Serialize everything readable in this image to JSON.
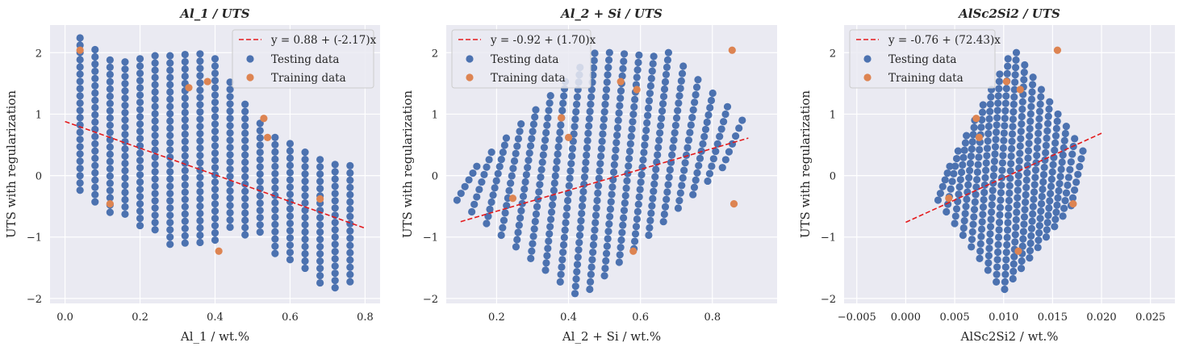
{
  "colors": {
    "background": "#eaeaf2",
    "grid": "#ffffff",
    "testing": "#4c72b0",
    "training": "#dd8452",
    "fit": "#e41a1c"
  },
  "chart_data": [
    {
      "type": "scatter",
      "title": "Al_1 / UTS",
      "xlabel": "Al_1 / wt.%",
      "ylabel": "UTS with regularization",
      "xlim": [
        -0.04,
        0.84
      ],
      "ylim": [
        -2.08,
        2.45
      ],
      "xticks": [
        0.0,
        0.2,
        0.4,
        0.6,
        0.8
      ],
      "xtick_labels": [
        "0.0",
        "0.2",
        "0.4",
        "0.6",
        "0.8"
      ],
      "yticks": [
        -2,
        -1,
        0,
        1,
        2
      ],
      "ytick_labels": [
        "−2",
        "−1",
        "0",
        "1",
        "2"
      ],
      "grid": true,
      "legend": {
        "position": "upper right",
        "entries": [
          "y = 0.88 + (-2.17)x",
          "Testing data",
          "Training data"
        ]
      },
      "fit_line": {
        "label": "y = 0.88 + (-2.17)x",
        "intercept": 0.88,
        "slope": -2.17,
        "x_range": [
          0.0,
          0.8
        ]
      },
      "testing_data": {
        "description": "Columns of testing points spaced 0.04 apart along x",
        "columns": [
          {
            "x": 0.04,
            "y_top": 2.24,
            "y_bottom": -0.31
          },
          {
            "x": 0.08,
            "y_top": 2.05,
            "y_bottom": -0.46
          },
          {
            "x": 0.12,
            "y_top": 1.88,
            "y_bottom": -0.62
          },
          {
            "x": 0.16,
            "y_top": 1.85,
            "y_bottom": -0.72
          },
          {
            "x": 0.2,
            "y_top": 1.9,
            "y_bottom": -0.86
          },
          {
            "x": 0.24,
            "y_top": 1.95,
            "y_bottom": -0.95
          },
          {
            "x": 0.28,
            "y_top": 1.95,
            "y_bottom": -1.13
          },
          {
            "x": 0.32,
            "y_top": 1.97,
            "y_bottom": -1.16
          },
          {
            "x": 0.36,
            "y_top": 1.98,
            "y_bottom": -1.13
          },
          {
            "x": 0.4,
            "y_top": 1.9,
            "y_bottom": -1.11
          },
          {
            "x": 0.44,
            "y_top": 1.52,
            "y_bottom": -0.92
          },
          {
            "x": 0.48,
            "y_top": 1.16,
            "y_bottom": -1.0
          },
          {
            "x": 0.52,
            "y_top": 0.85,
            "y_bottom": -1.03
          },
          {
            "x": 0.56,
            "y_top": 0.62,
            "y_bottom": -1.28
          },
          {
            "x": 0.6,
            "y_top": 0.52,
            "y_bottom": -1.47
          },
          {
            "x": 0.64,
            "y_top": 0.38,
            "y_bottom": -1.58
          },
          {
            "x": 0.68,
            "y_top": 0.26,
            "y_bottom": -1.76
          },
          {
            "x": 0.72,
            "y_top": 0.18,
            "y_bottom": -1.85
          },
          {
            "x": 0.76,
            "y_top": 0.16,
            "y_bottom": -1.78
          }
        ]
      },
      "training_data": [
        {
          "x": 0.04,
          "y": 2.04
        },
        {
          "x": 0.12,
          "y": -0.46
        },
        {
          "x": 0.33,
          "y": 1.43
        },
        {
          "x": 0.38,
          "y": 1.53
        },
        {
          "x": 0.41,
          "y": -1.23
        },
        {
          "x": 0.53,
          "y": 0.93
        },
        {
          "x": 0.54,
          "y": 0.62
        },
        {
          "x": 0.68,
          "y": -0.38
        }
      ]
    },
    {
      "type": "scatter",
      "title": "Al_2 + Si / UTS",
      "xlabel": "Al_2 + Si / wt.%",
      "ylabel": "UTS with regularization",
      "xlim": [
        0.06,
        0.98
      ],
      "ylim": [
        -2.08,
        2.45
      ],
      "xticks": [
        0.2,
        0.4,
        0.6,
        0.8
      ],
      "xtick_labels": [
        "0.2",
        "0.4",
        "0.6",
        "0.8"
      ],
      "yticks": [
        -2,
        -1,
        0,
        1,
        2
      ],
      "ytick_labels": [
        "−2",
        "−1",
        "0",
        "1",
        "2"
      ],
      "grid": true,
      "legend": {
        "position": "upper left",
        "entries": [
          "y = -0.92 + (1.70)x",
          "Testing data",
          "Training data"
        ]
      },
      "fit_line": {
        "label": "y = -0.92 + (1.70)x",
        "intercept": -0.92,
        "slope": 1.7,
        "x_range": [
          0.1,
          0.9
        ]
      },
      "training_data": [
        {
          "x": 0.245,
          "y": -0.37
        },
        {
          "x": 0.38,
          "y": 0.94
        },
        {
          "x": 0.4,
          "y": 0.62
        },
        {
          "x": 0.545,
          "y": 1.53
        },
        {
          "x": 0.58,
          "y": -1.23
        },
        {
          "x": 0.59,
          "y": 1.4
        },
        {
          "x": 0.855,
          "y": 2.04
        },
        {
          "x": 0.86,
          "y": -0.46
        }
      ]
    },
    {
      "type": "scatter",
      "title": "AlSc2Si2 / UTS",
      "xlabel": "AlSc2Si2 / wt.%",
      "ylabel": "UTS with regularization",
      "xlim": [
        -0.0063,
        0.0275
      ],
      "ylim": [
        -2.08,
        2.45
      ],
      "xticks": [
        -0.005,
        0.0,
        0.005,
        0.01,
        0.015,
        0.02,
        0.025
      ],
      "xtick_labels": [
        "−0.005",
        "0.000",
        "0.005",
        "0.010",
        "0.015",
        "0.020",
        "0.025"
      ],
      "yticks": [
        -2,
        -1,
        0,
        1,
        2
      ],
      "ytick_labels": [
        "−2",
        "−1",
        "0",
        "1",
        "2"
      ],
      "grid": true,
      "legend": {
        "position": "upper left",
        "entries": [
          "y = -0.76 + (72.43)x",
          "Testing data",
          "Training data"
        ]
      },
      "fit_line": {
        "label": "y = -0.76 + (72.43)x",
        "intercept": -0.76,
        "slope": 72.43,
        "x_range": [
          0.0,
          0.02
        ]
      },
      "training_data": [
        {
          "x": 0.0044,
          "y": -0.37
        },
        {
          "x": 0.0072,
          "y": 0.93
        },
        {
          "x": 0.0075,
          "y": 0.62
        },
        {
          "x": 0.0103,
          "y": 1.53
        },
        {
          "x": 0.0115,
          "y": -1.23
        },
        {
          "x": 0.0117,
          "y": 1.4
        },
        {
          "x": 0.0155,
          "y": 2.04
        },
        {
          "x": 0.0171,
          "y": -0.46
        }
      ]
    }
  ]
}
